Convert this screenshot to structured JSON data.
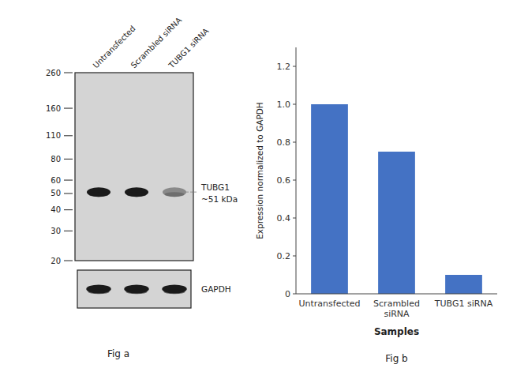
{
  "chart_data": [
    {
      "type": "blot",
      "title": "Fig a",
      "categories": [
        "Untransfected",
        "Scrambled siRNA",
        "TUBG1 siRNA"
      ],
      "log": "y",
      "ylim": [
        20,
        260
      ],
      "yticks": [
        260,
        160,
        110,
        80,
        60,
        50,
        40,
        30,
        20
      ],
      "band_kda": 51,
      "band_intensity": [
        1.0,
        1.0,
        0.4
      ],
      "annotations": [
        "TUBG1",
        "~51 kDa",
        "GAPDH"
      ],
      "color": "#1a1a1a"
    },
    {
      "type": "bar",
      "title": "Fig b",
      "categories": [
        "Untransfected",
        "Scrambled\nsiRNA",
        "TUBG1 siRNA"
      ],
      "values": [
        1.0,
        0.75,
        0.1
      ],
      "color": "#4472c4",
      "xlabel": "Samples",
      "ylabel": "Expression normalized to GAPDH",
      "ylim": [
        0,
        1.3
      ],
      "yticks": [
        0,
        0.2,
        0.4,
        0.6,
        0.8,
        {
          "value": 1.0,
          "label": "1.0"
        },
        1.2
      ],
      "grid": false
    }
  ]
}
